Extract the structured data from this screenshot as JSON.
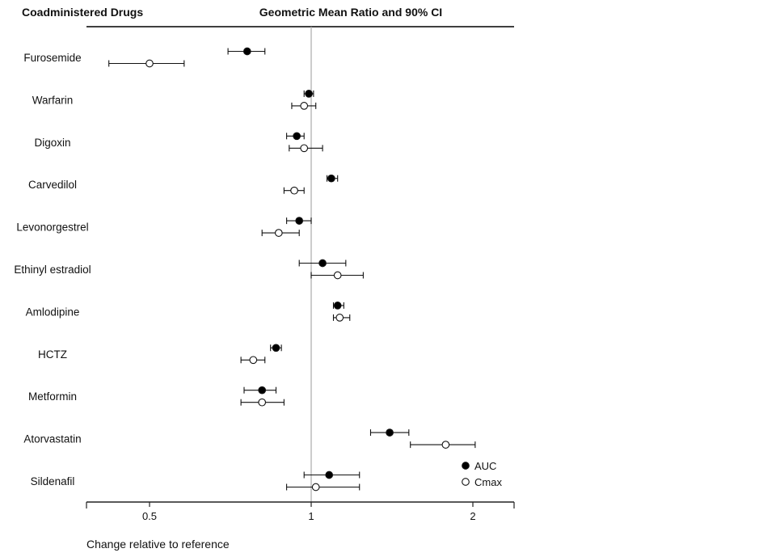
{
  "header": {
    "left_title": "Coadministered Drugs",
    "center_title": "Geometric Mean Ratio and 90% CI"
  },
  "chart_data": {
    "type": "forest",
    "xscale": "log",
    "xlabel": "Change relative to reference",
    "xlim": [
      0.32,
      2.4
    ],
    "reference_line": 1,
    "x_ticks": [
      {
        "value": 0.5,
        "label": "0.5"
      },
      {
        "value": 1,
        "label": "1"
      },
      {
        "value": 2,
        "label": "2"
      }
    ],
    "legend": {
      "position": "bottom-right",
      "items": [
        {
          "label": "AUC",
          "marker": "filled-circle"
        },
        {
          "label": "Cmax",
          "marker": "open-circle"
        }
      ]
    },
    "series": [
      {
        "name": "AUC",
        "marker": "filled-circle"
      },
      {
        "name": "Cmax",
        "marker": "open-circle"
      }
    ],
    "categories": [
      "Furosemide",
      "Warfarin",
      "Digoxin",
      "Carvedilol",
      "Levonorgestrel",
      "Ethinyl estradiol",
      "Amlodipine",
      "HCTZ",
      "Metformin",
      "Atorvastatin",
      "Sildenafil"
    ],
    "rows": [
      {
        "drug": "Furosemide",
        "AUC": {
          "est": 0.76,
          "lo": 0.7,
          "hi": 0.82
        },
        "Cmax": {
          "est": 0.5,
          "lo": 0.42,
          "hi": 0.58
        }
      },
      {
        "drug": "Warfarin",
        "AUC": {
          "est": 0.99,
          "lo": 0.97,
          "hi": 1.01
        },
        "Cmax": {
          "est": 0.97,
          "lo": 0.92,
          "hi": 1.02
        }
      },
      {
        "drug": "Digoxin",
        "AUC": {
          "est": 0.94,
          "lo": 0.9,
          "hi": 0.97
        },
        "Cmax": {
          "est": 0.97,
          "lo": 0.91,
          "hi": 1.05
        }
      },
      {
        "drug": "Carvedilol",
        "AUC": {
          "est": 1.09,
          "lo": 1.07,
          "hi": 1.12
        },
        "Cmax": {
          "est": 0.93,
          "lo": 0.89,
          "hi": 0.97
        }
      },
      {
        "drug": "Levonorgestrel",
        "AUC": {
          "est": 0.95,
          "lo": 0.9,
          "hi": 1.0
        },
        "Cmax": {
          "est": 0.87,
          "lo": 0.81,
          "hi": 0.95
        }
      },
      {
        "drug": "Ethinyl estradiol",
        "AUC": {
          "est": 1.05,
          "lo": 0.95,
          "hi": 1.16
        },
        "Cmax": {
          "est": 1.12,
          "lo": 1.0,
          "hi": 1.25
        }
      },
      {
        "drug": "Amlodipine",
        "AUC": {
          "est": 1.12,
          "lo": 1.1,
          "hi": 1.15
        },
        "Cmax": {
          "est": 1.13,
          "lo": 1.1,
          "hi": 1.18
        }
      },
      {
        "drug": "HCTZ",
        "AUC": {
          "est": 0.86,
          "lo": 0.84,
          "hi": 0.88
        },
        "Cmax": {
          "est": 0.78,
          "lo": 0.74,
          "hi": 0.82
        }
      },
      {
        "drug": "Metformin",
        "AUC": {
          "est": 0.81,
          "lo": 0.75,
          "hi": 0.86
        },
        "Cmax": {
          "est": 0.81,
          "lo": 0.74,
          "hi": 0.89
        }
      },
      {
        "drug": "Atorvastatin",
        "AUC": {
          "est": 1.4,
          "lo": 1.29,
          "hi": 1.52
        },
        "Cmax": {
          "est": 1.78,
          "lo": 1.53,
          "hi": 2.02
        }
      },
      {
        "drug": "Sildenafil",
        "AUC": {
          "est": 1.08,
          "lo": 0.97,
          "hi": 1.23
        },
        "Cmax": {
          "est": 1.02,
          "lo": 0.9,
          "hi": 1.23
        }
      }
    ]
  }
}
